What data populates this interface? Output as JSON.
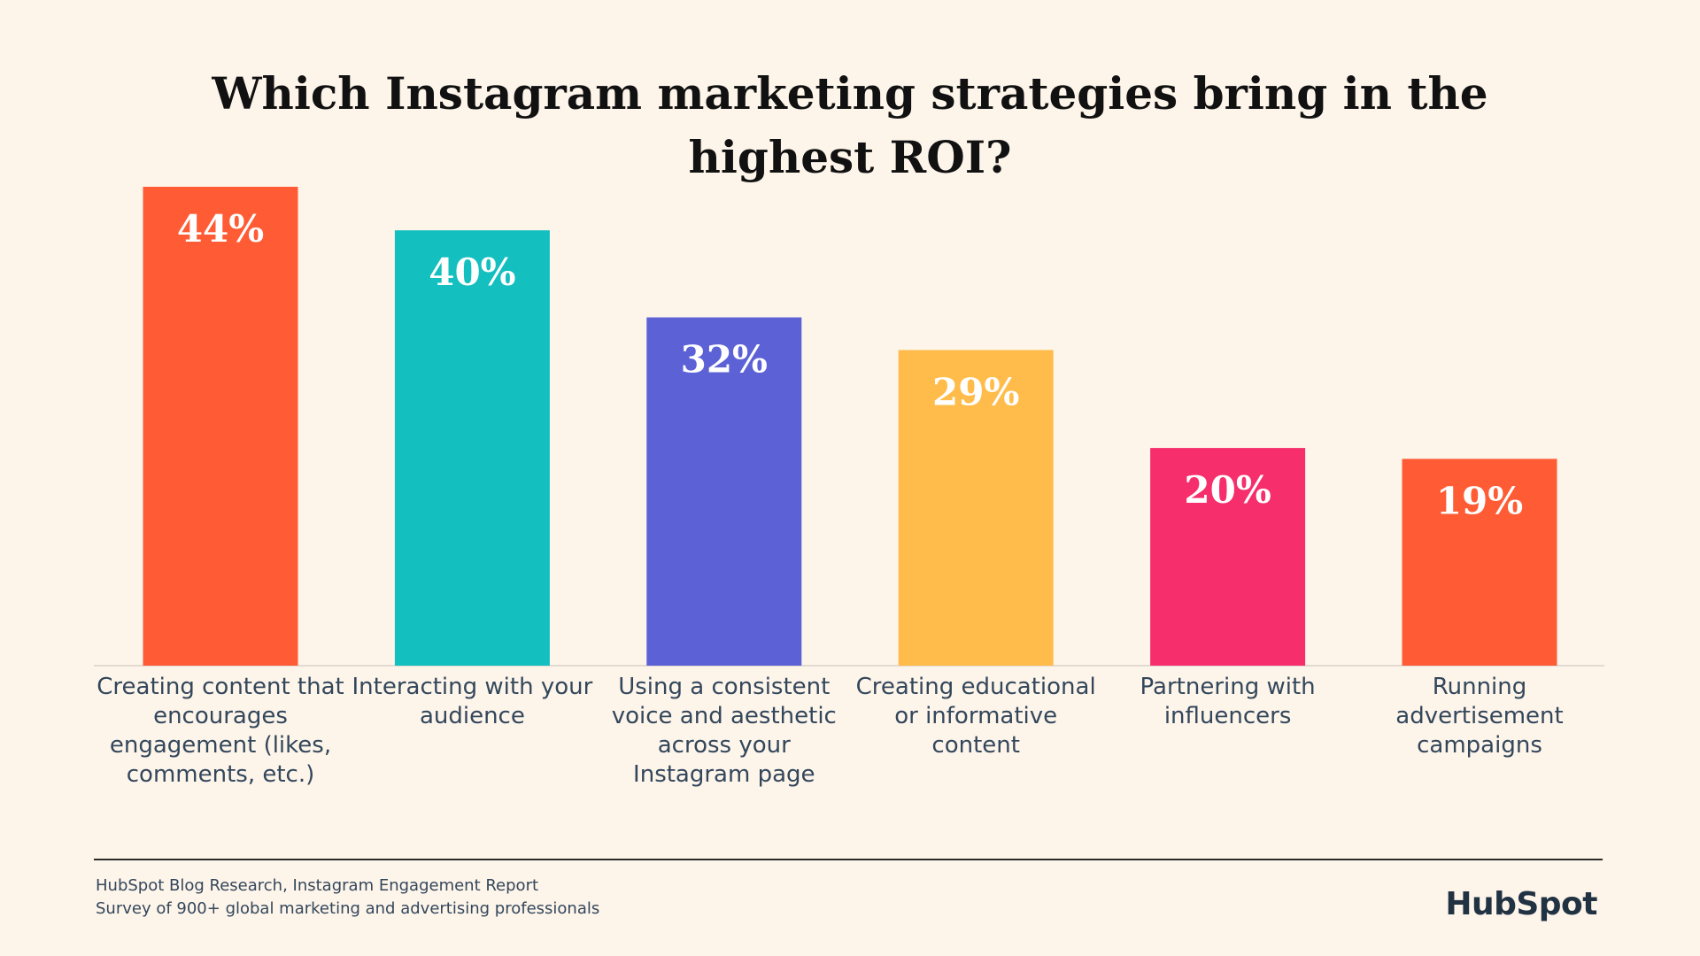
{
  "chart_data": {
    "type": "bar",
    "title": "Which Instagram marketing strategies bring in the highest ROI?",
    "xlabel": "",
    "ylabel": "",
    "ylim": [
      0,
      44
    ],
    "grid": false,
    "categories": [
      "Creating content that encourages engagement (likes, comments, etc.)",
      "Interacting with your audience",
      "Using a consistent voice and aesthetic across your Instagram page",
      "Creating educational or informative content",
      "Partnering with influencers",
      "Running advertisement campaigns"
    ],
    "values": [
      44,
      40,
      32,
      29,
      20,
      19
    ],
    "value_labels": [
      "44%",
      "40%",
      "32%",
      "29%",
      "20%",
      "19%"
    ],
    "colors": [
      "#ff5c35",
      "#13bfbf",
      "#5c62d6",
      "#ffbc4b",
      "#f62e6c",
      "#ff5c35"
    ]
  },
  "footer": {
    "source": "HubSpot Blog Research, Instagram Engagement Report",
    "survey": "Survey of 900+ global marketing and advertising professionals"
  },
  "brand": {
    "logo_text": "HubSpot",
    "accent": "#ff5c35"
  }
}
